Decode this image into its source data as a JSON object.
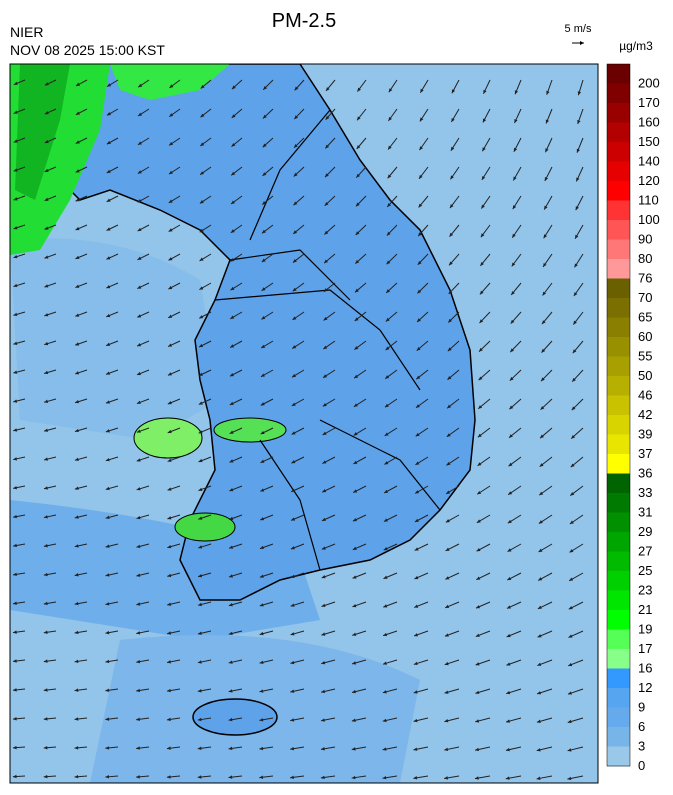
{
  "header": {
    "agency": "NIER",
    "datetime": "NOV 08 2025 15:00 KST",
    "title": "PM-2.5"
  },
  "wind_scale": {
    "label": "5 m/s"
  },
  "colorbar": {
    "unit": "µg/m3",
    "labels": [
      200,
      170,
      160,
      150,
      140,
      120,
      110,
      100,
      90,
      80,
      76,
      70,
      65,
      60,
      55,
      50,
      46,
      42,
      39,
      37,
      36,
      33,
      31,
      29,
      27,
      25,
      23,
      21,
      19,
      17,
      16,
      12,
      9,
      6,
      3,
      0
    ]
  }
}
